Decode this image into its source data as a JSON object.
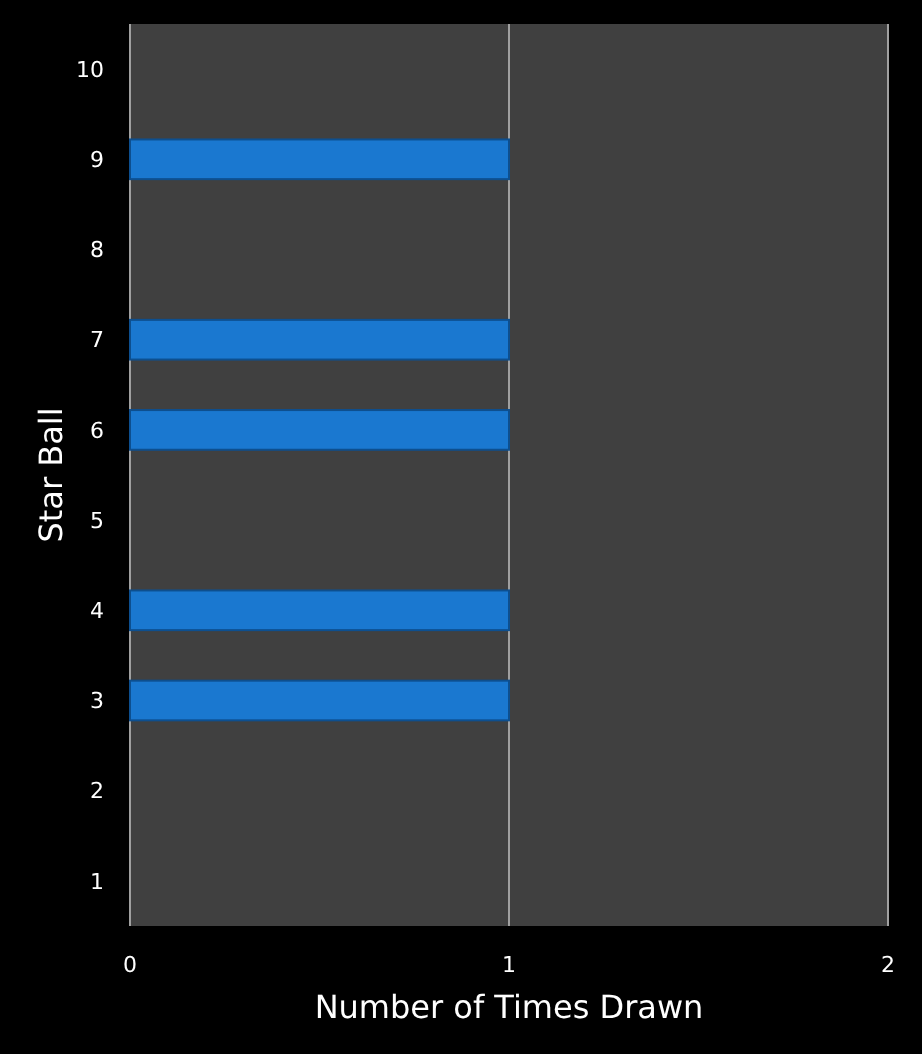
{
  "chart_data": {
    "type": "bar",
    "orientation": "horizontal",
    "categories": [
      "10",
      "9",
      "8",
      "7",
      "6",
      "5",
      "4",
      "3",
      "2",
      "1"
    ],
    "values": [
      0,
      1,
      0,
      1,
      1,
      0,
      1,
      1,
      0,
      0
    ],
    "color": "#1a78d0",
    "xlim": [
      0,
      2
    ],
    "xticks": [
      0,
      1,
      2
    ],
    "xlabel": "Number of Times Drawn",
    "ylabel": "Star Ball",
    "grid": "x"
  }
}
